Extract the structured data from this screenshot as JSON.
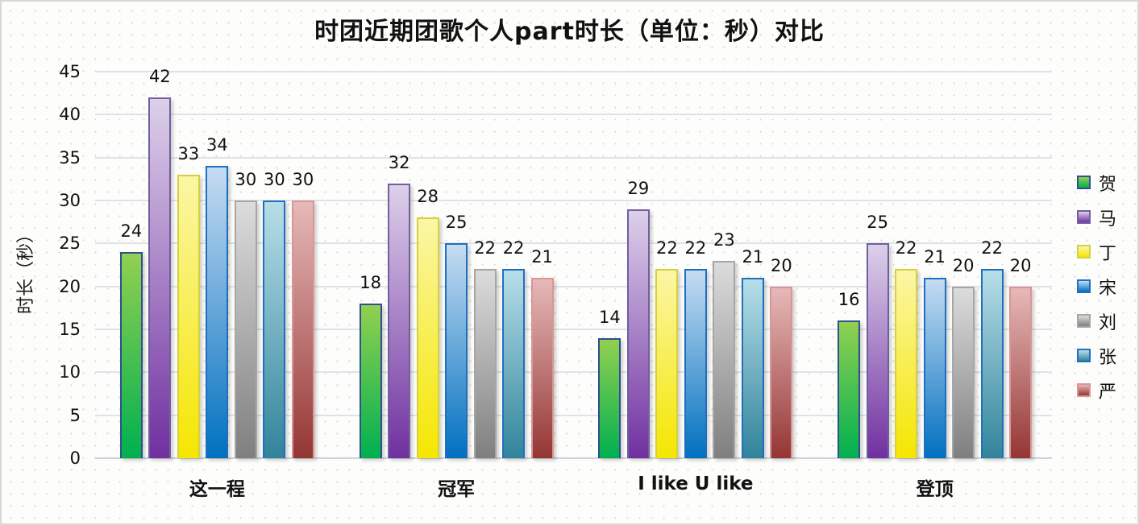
{
  "chart_data": {
    "type": "bar",
    "title": "时团近期团歌个人part时长（单位：秒）对比",
    "xlabel": "",
    "ylabel": "时长（秒）",
    "ylim": [
      0,
      45
    ],
    "yticks": [
      0,
      5,
      10,
      15,
      20,
      25,
      30,
      35,
      40,
      45
    ],
    "grid": true,
    "legend_position": "right",
    "categories": [
      "这一程",
      "冠军",
      "I like U like",
      "登顶"
    ],
    "series": [
      {
        "name": "贺",
        "color": "#00b050",
        "light": "#92d050",
        "border": "#2f4f8f",
        "values": [
          24,
          18,
          14,
          16
        ]
      },
      {
        "name": "马",
        "color": "#7030a0",
        "light": "#ddd0ea",
        "border": "#7060a0",
        "values": [
          42,
          32,
          29,
          25
        ]
      },
      {
        "name": "丁",
        "color": "#f5e600",
        "light": "#fbf6a6",
        "border": "#d4d040",
        "values": [
          33,
          28,
          22,
          22
        ]
      },
      {
        "name": "宋",
        "color": "#0070c0",
        "light": "#c6dcf2",
        "border": "#1f6fc0",
        "values": [
          34,
          25,
          22,
          21
        ]
      },
      {
        "name": "刘",
        "color": "#7f7f7f",
        "light": "#dcdcdc",
        "border": "#a6a6a6",
        "values": [
          30,
          22,
          23,
          20
        ]
      },
      {
        "name": "张",
        "color": "#31849b",
        "light": "#b7dee8",
        "border": "#1f6fc0",
        "values": [
          30,
          22,
          21,
          22
        ]
      },
      {
        "name": "严",
        "color": "#943634",
        "light": "#e6b9b8",
        "border": "#d99694",
        "values": [
          30,
          21,
          20,
          20
        ]
      }
    ]
  }
}
